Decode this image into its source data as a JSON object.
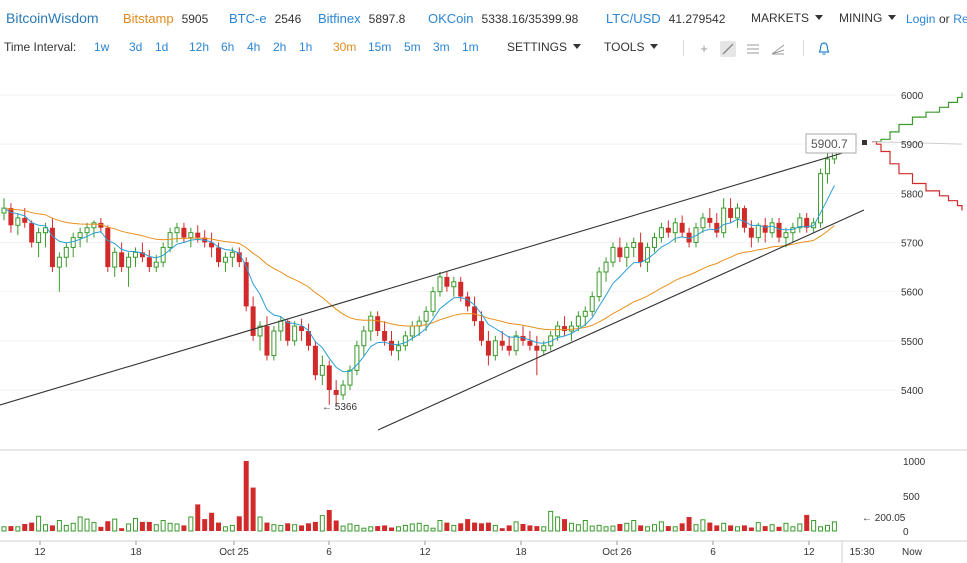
{
  "header": {
    "brand": "BitcoinWisdom",
    "exchanges": [
      {
        "name": "Bitstamp",
        "value": "5905",
        "color": "orange"
      },
      {
        "name": "BTC-e",
        "value": "2546",
        "color": "blue"
      },
      {
        "name": "Bitfinex",
        "value": "5897.8",
        "color": "blue"
      },
      {
        "name": "OKCoin",
        "value": "5338.16/35399.98",
        "color": "blue"
      },
      {
        "name": "LTC/USD",
        "value": "41.279542",
        "color": "blue"
      }
    ],
    "markets_label": "MARKETS",
    "mining_label": "MINING",
    "login_label": "Login",
    "or_label": "or",
    "register_label": "Re"
  },
  "toolbar": {
    "time_interval_label": "Time Interval:",
    "intervals": [
      "1w",
      "3d",
      "1d",
      "12h",
      "6h",
      "4h",
      "2h",
      "1h",
      "30m",
      "15m",
      "5m",
      "3m",
      "1m"
    ],
    "active_interval": "30m",
    "settings_label": "SETTINGS",
    "tools_label": "TOOLS",
    "tool_icons": [
      "crosshair-icon",
      "draw-line-icon",
      "fib-lines-icon",
      "fan-icon",
      "alert-bell-icon"
    ]
  },
  "chart_data": {
    "type": "candlestick",
    "y_axis_ticks": [
      "6000",
      "5900",
      "5800",
      "5700",
      "5600",
      "5500",
      "5400"
    ],
    "ylim": [
      5330,
      6050
    ],
    "volume_axis_ticks": [
      "1000",
      "500",
      "0"
    ],
    "volume_ylim": [
      0,
      1100
    ],
    "x_tick_labels": [
      "12",
      "18",
      "Oct 25",
      "6",
      "12",
      "18",
      "Oct 26",
      "6",
      "12",
      "15:30",
      "Now"
    ],
    "current_price_label": "5900.7",
    "low_annotation": "← 5366",
    "volume_annotation": "← 200.05",
    "colors": {
      "up": "#3a9a2c",
      "down": "#d12a2a",
      "ma_fast": "#2a9fd6",
      "ma_slow": "#e8901a",
      "trend": "#333333",
      "depth_bid": "#3a9a2c",
      "depth_ask": "#d12a2a"
    },
    "candles": [
      [
        5760,
        5790,
        5745,
        5770
      ],
      [
        5770,
        5780,
        5720,
        5735
      ],
      [
        5735,
        5760,
        5715,
        5750
      ],
      [
        5750,
        5770,
        5730,
        5740
      ],
      [
        5740,
        5745,
        5690,
        5700
      ],
      [
        5700,
        5730,
        5670,
        5720
      ],
      [
        5720,
        5740,
        5690,
        5730
      ],
      [
        5730,
        5750,
        5640,
        5650
      ],
      [
        5650,
        5680,
        5600,
        5670
      ],
      [
        5670,
        5700,
        5650,
        5690
      ],
      [
        5690,
        5720,
        5670,
        5710
      ],
      [
        5710,
        5730,
        5690,
        5720
      ],
      [
        5720,
        5740,
        5700,
        5730
      ],
      [
        5730,
        5745,
        5710,
        5740
      ],
      [
        5740,
        5750,
        5720,
        5730
      ],
      [
        5730,
        5735,
        5640,
        5650
      ],
      [
        5650,
        5690,
        5630,
        5680
      ],
      [
        5680,
        5700,
        5640,
        5650
      ],
      [
        5650,
        5680,
        5610,
        5670
      ],
      [
        5670,
        5690,
        5650,
        5680
      ],
      [
        5680,
        5700,
        5660,
        5670
      ],
      [
        5670,
        5685,
        5640,
        5650
      ],
      [
        5650,
        5675,
        5640,
        5660
      ],
      [
        5660,
        5700,
        5650,
        5690
      ],
      [
        5690,
        5730,
        5680,
        5720
      ],
      [
        5720,
        5740,
        5700,
        5730
      ],
      [
        5730,
        5740,
        5700,
        5710
      ],
      [
        5710,
        5730,
        5690,
        5720
      ],
      [
        5720,
        5735,
        5700,
        5710
      ],
      [
        5710,
        5725,
        5690,
        5700
      ],
      [
        5700,
        5720,
        5670,
        5690
      ],
      [
        5690,
        5700,
        5650,
        5660
      ],
      [
        5660,
        5680,
        5640,
        5670
      ],
      [
        5670,
        5690,
        5650,
        5680
      ],
      [
        5680,
        5690,
        5650,
        5660
      ],
      [
        5660,
        5670,
        5560,
        5570
      ],
      [
        5570,
        5590,
        5500,
        5510
      ],
      [
        5510,
        5540,
        5480,
        5530
      ],
      [
        5530,
        5550,
        5460,
        5470
      ],
      [
        5470,
        5530,
        5460,
        5520
      ],
      [
        5520,
        5550,
        5500,
        5540
      ],
      [
        5540,
        5545,
        5490,
        5500
      ],
      [
        5500,
        5540,
        5490,
        5530
      ],
      [
        5530,
        5545,
        5500,
        5520
      ],
      [
        5520,
        5535,
        5480,
        5490
      ],
      [
        5490,
        5500,
        5420,
        5430
      ],
      [
        5430,
        5470,
        5410,
        5450
      ],
      [
        5450,
        5460,
        5370,
        5400
      ],
      [
        5400,
        5420,
        5366,
        5390
      ],
      [
        5390,
        5420,
        5380,
        5410
      ],
      [
        5410,
        5450,
        5400,
        5440
      ],
      [
        5440,
        5500,
        5430,
        5490
      ],
      [
        5490,
        5530,
        5470,
        5520
      ],
      [
        5520,
        5560,
        5500,
        5550
      ],
      [
        5550,
        5560,
        5510,
        5520
      ],
      [
        5520,
        5540,
        5490,
        5500
      ],
      [
        5500,
        5520,
        5470,
        5480
      ],
      [
        5480,
        5500,
        5460,
        5490
      ],
      [
        5490,
        5520,
        5480,
        5510
      ],
      [
        5510,
        5540,
        5500,
        5530
      ],
      [
        5530,
        5550,
        5510,
        5540
      ],
      [
        5540,
        5570,
        5520,
        5560
      ],
      [
        5560,
        5610,
        5550,
        5600
      ],
      [
        5600,
        5640,
        5590,
        5630
      ],
      [
        5630,
        5640,
        5600,
        5610
      ],
      [
        5610,
        5630,
        5590,
        5620
      ],
      [
        5620,
        5630,
        5580,
        5590
      ],
      [
        5590,
        5600,
        5560,
        5570
      ],
      [
        5570,
        5590,
        5530,
        5540
      ],
      [
        5540,
        5560,
        5490,
        5500
      ],
      [
        5500,
        5520,
        5450,
        5470
      ],
      [
        5470,
        5510,
        5460,
        5500
      ],
      [
        5500,
        5520,
        5480,
        5490
      ],
      [
        5490,
        5510,
        5470,
        5480
      ],
      [
        5480,
        5520,
        5470,
        5510
      ],
      [
        5510,
        5530,
        5490,
        5500
      ],
      [
        5500,
        5520,
        5480,
        5490
      ],
      [
        5490,
        5510,
        5430,
        5480
      ],
      [
        5480,
        5500,
        5470,
        5490
      ],
      [
        5490,
        5520,
        5480,
        5510
      ],
      [
        5510,
        5540,
        5500,
        5530
      ],
      [
        5530,
        5550,
        5510,
        5520
      ],
      [
        5520,
        5540,
        5500,
        5530
      ],
      [
        5530,
        5560,
        5520,
        5550
      ],
      [
        5550,
        5570,
        5530,
        5560
      ],
      [
        5560,
        5600,
        5550,
        5590
      ],
      [
        5590,
        5650,
        5580,
        5640
      ],
      [
        5640,
        5670,
        5620,
        5660
      ],
      [
        5660,
        5700,
        5650,
        5690
      ],
      [
        5690,
        5710,
        5660,
        5670
      ],
      [
        5670,
        5700,
        5650,
        5690
      ],
      [
        5690,
        5710,
        5670,
        5700
      ],
      [
        5700,
        5720,
        5650,
        5660
      ],
      [
        5660,
        5700,
        5640,
        5690
      ],
      [
        5690,
        5720,
        5680,
        5710
      ],
      [
        5710,
        5740,
        5700,
        5730
      ],
      [
        5730,
        5745,
        5710,
        5720
      ],
      [
        5720,
        5750,
        5700,
        5740
      ],
      [
        5740,
        5755,
        5710,
        5720
      ],
      [
        5720,
        5730,
        5690,
        5700
      ],
      [
        5700,
        5740,
        5690,
        5730
      ],
      [
        5730,
        5760,
        5720,
        5750
      ],
      [
        5750,
        5770,
        5730,
        5740
      ],
      [
        5740,
        5760,
        5710,
        5720
      ],
      [
        5720,
        5790,
        5710,
        5770
      ],
      [
        5770,
        5790,
        5740,
        5750
      ],
      [
        5750,
        5780,
        5730,
        5770
      ],
      [
        5770,
        5775,
        5720,
        5730
      ],
      [
        5730,
        5745,
        5690,
        5710
      ],
      [
        5710,
        5740,
        5700,
        5735
      ],
      [
        5735,
        5750,
        5700,
        5720
      ],
      [
        5720,
        5750,
        5710,
        5740
      ],
      [
        5740,
        5750,
        5700,
        5710
      ],
      [
        5710,
        5730,
        5690,
        5720
      ],
      [
        5720,
        5740,
        5700,
        5730
      ],
      [
        5730,
        5760,
        5720,
        5750
      ],
      [
        5750,
        5760,
        5720,
        5730
      ],
      [
        5730,
        5750,
        5720,
        5740
      ],
      [
        5740,
        5850,
        5730,
        5840
      ],
      [
        5840,
        5890,
        5820,
        5870
      ],
      [
        5870,
        5905,
        5860,
        5900
      ]
    ],
    "volumes": [
      60,
      70,
      60,
      100,
      120,
      210,
      90,
      80,
      150,
      80,
      110,
      200,
      170,
      120,
      60,
      140,
      170,
      40,
      100,
      180,
      130,
      130,
      90,
      150,
      110,
      100,
      80,
      200,
      380,
      170,
      260,
      120,
      60,
      80,
      210,
      1000,
      620,
      200,
      120,
      90,
      80,
      110,
      90,
      80,
      110,
      130,
      220,
      300,
      150,
      70,
      100,
      80,
      40,
      60,
      70,
      80,
      50,
      60,
      80,
      100,
      110,
      80,
      40,
      150,
      120,
      80,
      110,
      170,
      120,
      110,
      120,
      80,
      40,
      80,
      130,
      100,
      80,
      70,
      60,
      280,
      200,
      170,
      110,
      90,
      150,
      70,
      80,
      60,
      70,
      100,
      110,
      150,
      80,
      60,
      90,
      130,
      70,
      60,
      110,
      200,
      90,
      160,
      120,
      80,
      110,
      80,
      60,
      80,
      50,
      120,
      70,
      90,
      60,
      110,
      60,
      100,
      230,
      150,
      60,
      80,
      130
    ],
    "depth_bid": [
      [
        5905,
        0
      ],
      [
        5905,
        0.05
      ],
      [
        5910,
        0.1
      ],
      [
        5925,
        0.2
      ],
      [
        5940,
        0.3
      ],
      [
        5955,
        0.45
      ],
      [
        5965,
        0.6
      ],
      [
        5975,
        0.75
      ],
      [
        5985,
        0.85
      ],
      [
        5995,
        0.95
      ],
      [
        6005,
        1.0
      ]
    ],
    "depth_ask": [
      [
        5905,
        0
      ],
      [
        5900,
        0.05
      ],
      [
        5885,
        0.1
      ],
      [
        5860,
        0.2
      ],
      [
        5840,
        0.3
      ],
      [
        5820,
        0.45
      ],
      [
        5805,
        0.6
      ],
      [
        5795,
        0.75
      ],
      [
        5785,
        0.85
      ],
      [
        5775,
        0.95
      ],
      [
        5765,
        1.0
      ]
    ]
  }
}
